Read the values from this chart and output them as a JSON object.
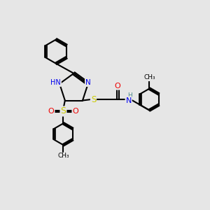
{
  "background_color": "#e6e6e6",
  "atom_colors": {
    "C": "#000000",
    "N": "#0000ee",
    "O": "#ee0000",
    "S": "#cccc00",
    "H": "#4a8a8a"
  },
  "bond_width": 1.5,
  "figsize": [
    3.0,
    3.0
  ],
  "dpi": 100,
  "xlim": [
    0,
    10
  ],
  "ylim": [
    0,
    10
  ]
}
